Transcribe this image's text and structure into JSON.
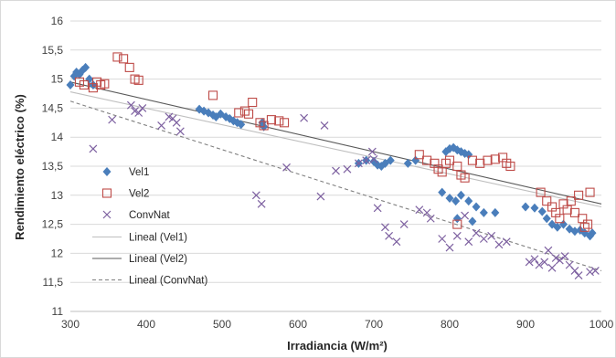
{
  "chart_data": {
    "type": "scatter",
    "xlabel": "Irradiancia (W/m²)",
    "ylabel": "Rendimiento eléctrico (%)",
    "xlim": [
      300,
      1000
    ],
    "ylim": [
      11,
      16
    ],
    "x_ticks": [
      "300",
      "400",
      "500",
      "600",
      "700",
      "800",
      "900",
      "1000"
    ],
    "y_ticks": [
      "11",
      "11,5",
      "12",
      "12,5",
      "13",
      "13,5",
      "14",
      "14,5",
      "15",
      "15,5",
      "16"
    ],
    "grid": "horizontal",
    "legend_position": "left",
    "series": [
      {
        "name": "Vel1",
        "marker": "diamond",
        "color": "#4a7ebb",
        "points": [
          [
            300,
            14.9
          ],
          [
            305,
            15.05
          ],
          [
            308,
            15.12
          ],
          [
            312,
            15.08
          ],
          [
            316,
            15.15
          ],
          [
            320,
            15.2
          ],
          [
            325,
            15.0
          ],
          [
            330,
            14.9
          ],
          [
            470,
            14.48
          ],
          [
            476,
            14.45
          ],
          [
            482,
            14.42
          ],
          [
            488,
            14.38
          ],
          [
            492,
            14.35
          ],
          [
            498,
            14.4
          ],
          [
            505,
            14.35
          ],
          [
            510,
            14.32
          ],
          [
            515,
            14.28
          ],
          [
            520,
            14.25
          ],
          [
            525,
            14.22
          ],
          [
            553,
            14.25
          ],
          [
            555,
            14.18
          ],
          [
            680,
            13.55
          ],
          [
            690,
            13.6
          ],
          [
            700,
            13.58
          ],
          [
            705,
            13.52
          ],
          [
            710,
            13.5
          ],
          [
            715,
            13.55
          ],
          [
            722,
            13.6
          ],
          [
            745,
            13.55
          ],
          [
            755,
            13.6
          ],
          [
            795,
            13.75
          ],
          [
            800,
            13.8
          ],
          [
            805,
            13.82
          ],
          [
            810,
            13.78
          ],
          [
            815,
            13.75
          ],
          [
            820,
            13.72
          ],
          [
            825,
            13.7
          ],
          [
            790,
            13.05
          ],
          [
            800,
            12.95
          ],
          [
            808,
            12.9
          ],
          [
            815,
            13.0
          ],
          [
            825,
            12.9
          ],
          [
            835,
            12.8
          ],
          [
            845,
            12.7
          ],
          [
            860,
            12.7
          ],
          [
            810,
            12.6
          ],
          [
            830,
            12.55
          ],
          [
            900,
            12.8
          ],
          [
            912,
            12.78
          ],
          [
            922,
            12.72
          ],
          [
            928,
            12.6
          ],
          [
            935,
            12.5
          ],
          [
            942,
            12.45
          ],
          [
            950,
            12.5
          ],
          [
            958,
            12.42
          ],
          [
            965,
            12.38
          ],
          [
            972,
            12.4
          ],
          [
            978,
            12.35
          ],
          [
            985,
            12.3
          ],
          [
            988,
            12.35
          ]
        ]
      },
      {
        "name": "Vel2",
        "marker": "square",
        "color": "#be4b48",
        "points": [
          [
            312,
            14.95
          ],
          [
            318,
            14.9
          ],
          [
            330,
            14.85
          ],
          [
            335,
            14.95
          ],
          [
            340,
            14.9
          ],
          [
            345,
            14.92
          ],
          [
            362,
            15.38
          ],
          [
            370,
            15.35
          ],
          [
            378,
            15.2
          ],
          [
            385,
            15.0
          ],
          [
            390,
            14.98
          ],
          [
            488,
            14.72
          ],
          [
            522,
            14.42
          ],
          [
            530,
            14.45
          ],
          [
            535,
            14.4
          ],
          [
            540,
            14.6
          ],
          [
            550,
            14.25
          ],
          [
            555,
            14.2
          ],
          [
            565,
            14.3
          ],
          [
            575,
            14.28
          ],
          [
            582,
            14.25
          ],
          [
            760,
            13.7
          ],
          [
            770,
            13.6
          ],
          [
            780,
            13.55
          ],
          [
            785,
            13.45
          ],
          [
            790,
            13.4
          ],
          [
            795,
            13.55
          ],
          [
            800,
            13.6
          ],
          [
            810,
            13.5
          ],
          [
            815,
            13.35
          ],
          [
            820,
            13.3
          ],
          [
            830,
            13.6
          ],
          [
            840,
            13.55
          ],
          [
            850,
            13.6
          ],
          [
            860,
            13.62
          ],
          [
            870,
            13.65
          ],
          [
            875,
            13.55
          ],
          [
            880,
            13.5
          ],
          [
            810,
            12.5
          ],
          [
            920,
            13.05
          ],
          [
            928,
            12.9
          ],
          [
            935,
            12.8
          ],
          [
            940,
            12.7
          ],
          [
            945,
            12.6
          ],
          [
            950,
            12.85
          ],
          [
            955,
            12.75
          ],
          [
            960,
            12.9
          ],
          [
            965,
            12.7
          ],
          [
            970,
            13.0
          ],
          [
            975,
            12.6
          ],
          [
            978,
            12.45
          ],
          [
            982,
            12.5
          ],
          [
            985,
            13.05
          ]
        ]
      },
      {
        "name": "ConvNat",
        "marker": "x",
        "color": "#7d60a0",
        "points": [
          [
            330,
            13.8
          ],
          [
            355,
            14.3
          ],
          [
            380,
            14.55
          ],
          [
            385,
            14.45
          ],
          [
            390,
            14.42
          ],
          [
            395,
            14.5
          ],
          [
            420,
            14.2
          ],
          [
            430,
            14.35
          ],
          [
            435,
            14.32
          ],
          [
            440,
            14.25
          ],
          [
            445,
            14.1
          ],
          [
            545,
            13.0
          ],
          [
            552,
            12.85
          ],
          [
            585,
            13.48
          ],
          [
            608,
            14.33
          ],
          [
            630,
            12.98
          ],
          [
            635,
            14.2
          ],
          [
            650,
            13.42
          ],
          [
            665,
            13.45
          ],
          [
            680,
            13.55
          ],
          [
            690,
            13.6
          ],
          [
            698,
            13.75
          ],
          [
            700,
            13.62
          ],
          [
            705,
            12.78
          ],
          [
            715,
            12.45
          ],
          [
            720,
            12.3
          ],
          [
            730,
            12.2
          ],
          [
            740,
            12.5
          ],
          [
            760,
            12.75
          ],
          [
            770,
            12.7
          ],
          [
            775,
            12.6
          ],
          [
            790,
            12.25
          ],
          [
            800,
            12.1
          ],
          [
            810,
            12.3
          ],
          [
            820,
            12.65
          ],
          [
            825,
            12.2
          ],
          [
            835,
            12.35
          ],
          [
            845,
            12.25
          ],
          [
            855,
            12.3
          ],
          [
            865,
            12.15
          ],
          [
            875,
            12.2
          ],
          [
            905,
            11.85
          ],
          [
            912,
            11.9
          ],
          [
            918,
            11.8
          ],
          [
            925,
            11.85
          ],
          [
            930,
            12.05
          ],
          [
            935,
            11.75
          ],
          [
            940,
            11.92
          ],
          [
            945,
            11.88
          ],
          [
            952,
            11.95
          ],
          [
            958,
            11.8
          ],
          [
            965,
            11.7
          ],
          [
            970,
            11.62
          ],
          [
            985,
            11.68
          ],
          [
            992,
            11.7
          ]
        ]
      }
    ],
    "trendlines": [
      {
        "name": "Lineal (Vel1)",
        "color": "#bfbfbf",
        "dash": "solid",
        "from": [
          300,
          14.78
        ],
        "to": [
          1000,
          12.8
        ]
      },
      {
        "name": "Lineal (Vel2)",
        "color": "#595959",
        "dash": "solid",
        "from": [
          300,
          14.95
        ],
        "to": [
          1000,
          12.85
        ]
      },
      {
        "name": "Lineal (ConvNat)",
        "color": "#7f7f7f",
        "dash": "dashed",
        "from": [
          300,
          14.62
        ],
        "to": [
          1000,
          11.7
        ]
      }
    ]
  }
}
